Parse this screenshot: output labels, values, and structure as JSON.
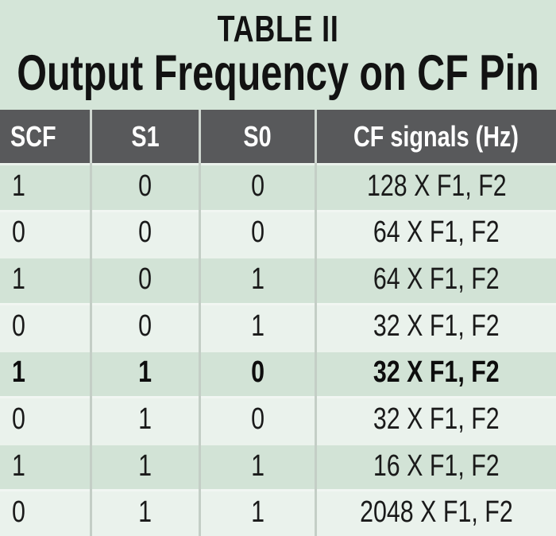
{
  "chart_data": {
    "type": "table",
    "title": "TABLE II",
    "caption": "Output Frequency on CF Pin",
    "columns": [
      "SCF",
      "S1",
      "S0",
      "CF signals (Hz)"
    ],
    "rows": [
      [
        "1",
        "0",
        "0",
        "128 X F1, F2"
      ],
      [
        "0",
        "0",
        "0",
        "64 X F1, F2"
      ],
      [
        "1",
        "0",
        "1",
        "64 X F1, F2"
      ],
      [
        "0",
        "0",
        "1",
        "32 X F1, F2"
      ],
      [
        "1",
        "1",
        "0",
        "32 X F1, F2"
      ],
      [
        "0",
        "1",
        "0",
        "32 X F1, F2"
      ],
      [
        "1",
        "1",
        "1",
        "16 X F1, F2"
      ],
      [
        "0",
        "1",
        "1",
        "2048 X F1, F2"
      ]
    ],
    "emphasized_row_index": 4,
    "layout": {
      "header_position": "top",
      "first_column_align": "left",
      "other_columns_align": "center",
      "row_striping": true
    }
  },
  "colors": {
    "page_background": "#d4e5d8",
    "header_background": "#58595b",
    "header_text": "#ffffff",
    "row_dark": "#d2e3d6",
    "row_light": "#eaf2ec",
    "body_text": "#1a1a1a",
    "divider_line": "#c4cec6"
  }
}
